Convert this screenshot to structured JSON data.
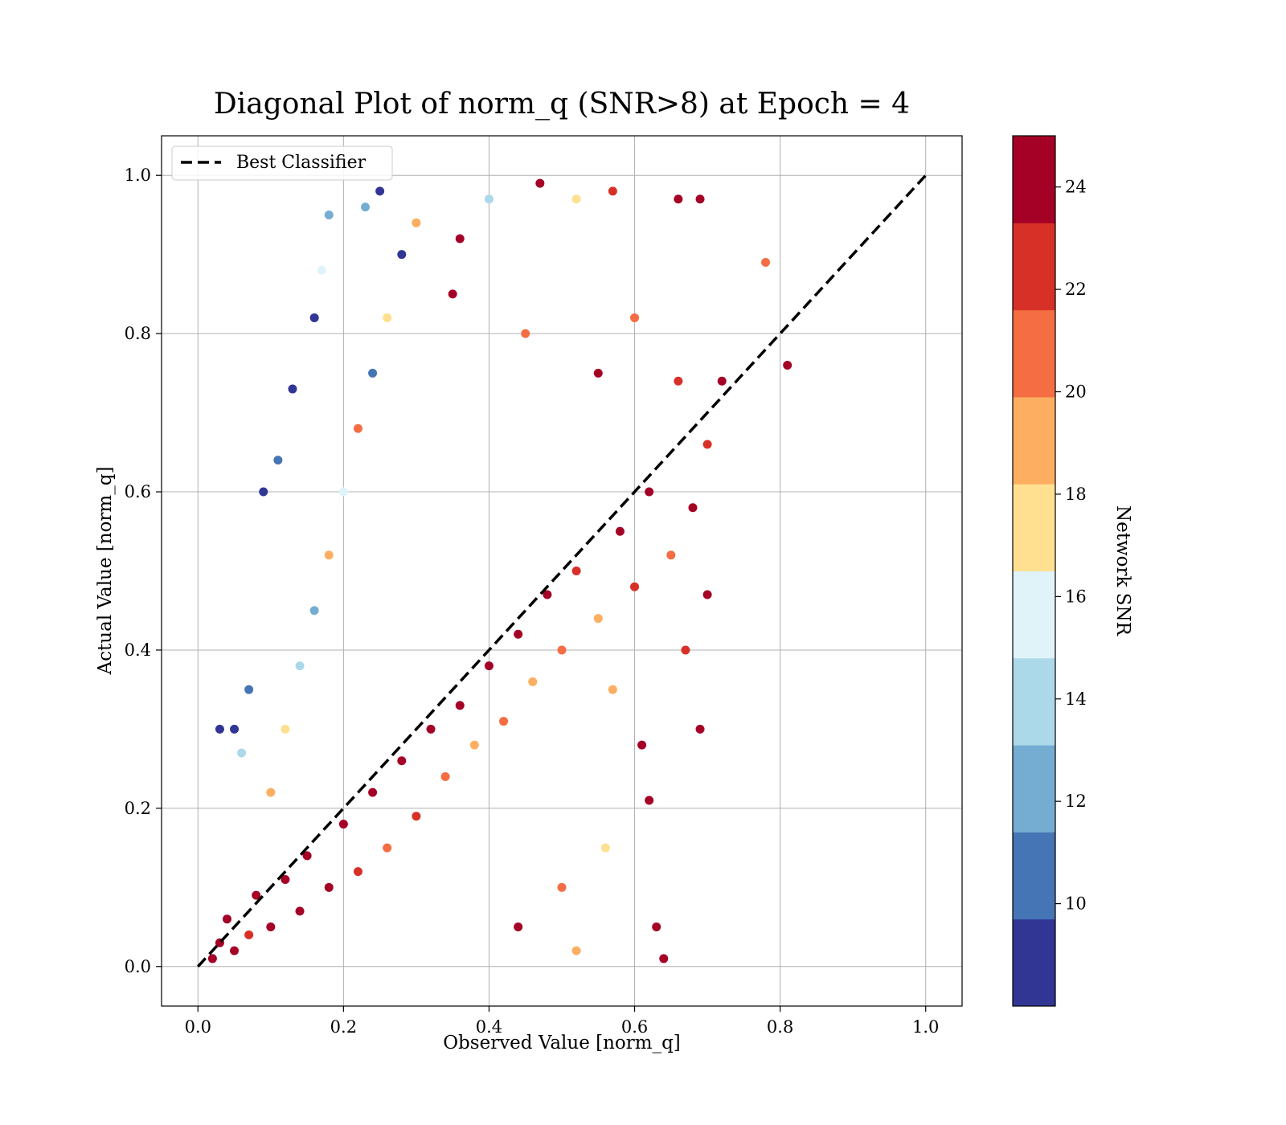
{
  "chart_data": {
    "type": "scatter",
    "title": "Diagonal Plot of norm_q (SNR>8) at Epoch = 4",
    "xlabel": "Observed Value [norm_q]",
    "ylabel": "Actual Value [norm_q]",
    "xlim": [
      -0.05,
      1.05
    ],
    "ylim": [
      -0.05,
      1.05
    ],
    "xticks": [
      "0.0",
      "0.2",
      "0.4",
      "0.6",
      "0.8",
      "1.0"
    ],
    "yticks": [
      "0.0",
      "0.2",
      "0.4",
      "0.6",
      "0.8",
      "1.0"
    ],
    "grid": true,
    "legend": {
      "placement": "top-left",
      "entries": [
        "Best Classifier"
      ]
    },
    "reference_line": {
      "name": "Best Classifier",
      "x": [
        0.0,
        1.0
      ],
      "y": [
        0.0,
        1.0
      ],
      "style": "dashed",
      "color": "#000000"
    },
    "colorbar": {
      "label": "Network SNR",
      "range": [
        8,
        25
      ],
      "ticks": [
        "10",
        "12",
        "14",
        "16",
        "18",
        "20",
        "22",
        "24"
      ],
      "colors": [
        "#313695",
        "#4575b4",
        "#74add1",
        "#abd9e9",
        "#e0f3f8",
        "#fee090",
        "#fdae61",
        "#f46d43",
        "#d73027",
        "#a50026"
      ]
    },
    "series": [
      {
        "color_by": "Network SNR",
        "points": [
          [
            0.02,
            0.01,
            24.5
          ],
          [
            0.03,
            0.03,
            24.1
          ],
          [
            0.05,
            0.02,
            23.8
          ],
          [
            0.04,
            0.06,
            24.7
          ],
          [
            0.07,
            0.04,
            22.9
          ],
          [
            0.08,
            0.09,
            24.3
          ],
          [
            0.1,
            0.05,
            24.8
          ],
          [
            0.12,
            0.11,
            24.0
          ],
          [
            0.14,
            0.07,
            23.5
          ],
          [
            0.15,
            0.14,
            24.6
          ],
          [
            0.18,
            0.1,
            24.9
          ],
          [
            0.2,
            0.18,
            24.2
          ],
          [
            0.22,
            0.12,
            23.1
          ],
          [
            0.24,
            0.22,
            24.4
          ],
          [
            0.26,
            0.15,
            21.5
          ],
          [
            0.28,
            0.26,
            24.7
          ],
          [
            0.3,
            0.19,
            22.4
          ],
          [
            0.32,
            0.3,
            24.1
          ],
          [
            0.34,
            0.24,
            20.3
          ],
          [
            0.36,
            0.33,
            23.9
          ],
          [
            0.38,
            0.28,
            19.6
          ],
          [
            0.4,
            0.38,
            24.5
          ],
          [
            0.42,
            0.31,
            21.0
          ],
          [
            0.44,
            0.42,
            23.3
          ],
          [
            0.46,
            0.36,
            19.1
          ],
          [
            0.48,
            0.47,
            24.0
          ],
          [
            0.5,
            0.4,
            20.8
          ],
          [
            0.52,
            0.5,
            22.6
          ],
          [
            0.55,
            0.44,
            18.7
          ],
          [
            0.58,
            0.55,
            24.2
          ],
          [
            0.6,
            0.48,
            21.7
          ],
          [
            0.62,
            0.6,
            23.8
          ],
          [
            0.65,
            0.52,
            20.1
          ],
          [
            0.68,
            0.58,
            24.6
          ],
          [
            0.7,
            0.66,
            22.3
          ],
          [
            0.72,
            0.74,
            24.4
          ],
          [
            0.78,
            0.89,
            20.4
          ],
          [
            0.81,
            0.76,
            24.0
          ],
          [
            0.63,
            0.05,
            24.1
          ],
          [
            0.64,
            0.01,
            23.6
          ],
          [
            0.1,
            0.22,
            19.5
          ],
          [
            0.12,
            0.3,
            17.2
          ],
          [
            0.14,
            0.38,
            14.6
          ],
          [
            0.16,
            0.45,
            12.3
          ],
          [
            0.18,
            0.52,
            18.4
          ],
          [
            0.2,
            0.6,
            15.1
          ],
          [
            0.22,
            0.68,
            20.6
          ],
          [
            0.24,
            0.75,
            10.4
          ],
          [
            0.26,
            0.82,
            16.8
          ],
          [
            0.28,
            0.9,
            9.2
          ],
          [
            0.25,
            0.98,
            8.6
          ],
          [
            0.23,
            0.96,
            11.5
          ],
          [
            0.3,
            0.94,
            19.2
          ],
          [
            0.36,
            0.92,
            24.6
          ],
          [
            0.4,
            0.97,
            13.3
          ],
          [
            0.47,
            0.99,
            24.5
          ],
          [
            0.52,
            0.97,
            18.0
          ],
          [
            0.57,
            0.98,
            22.7
          ],
          [
            0.66,
            0.97,
            24.3
          ],
          [
            0.69,
            0.97,
            24.7
          ],
          [
            0.09,
            0.6,
            9.0
          ],
          [
            0.05,
            0.3,
            8.3
          ],
          [
            0.03,
            0.3,
            8.8
          ],
          [
            0.16,
            0.82,
            9.5
          ],
          [
            0.18,
            0.95,
            12.4
          ],
          [
            0.11,
            0.64,
            10.1
          ],
          [
            0.07,
            0.35,
            11.2
          ],
          [
            0.06,
            0.27,
            13.6
          ],
          [
            0.13,
            0.73,
            8.9
          ],
          [
            0.17,
            0.88,
            15.4
          ],
          [
            0.35,
            0.85,
            23.4
          ],
          [
            0.45,
            0.8,
            21.1
          ],
          [
            0.55,
            0.75,
            24.2
          ],
          [
            0.6,
            0.82,
            20.9
          ],
          [
            0.66,
            0.74,
            23.0
          ],
          [
            0.56,
            0.15,
            17.9
          ],
          [
            0.5,
            0.1,
            20.4
          ],
          [
            0.44,
            0.05,
            23.6
          ],
          [
            0.52,
            0.02,
            19.8
          ],
          [
            0.57,
            0.35,
            18.2
          ],
          [
            0.61,
            0.28,
            24.0
          ],
          [
            0.67,
            0.4,
            22.5
          ],
          [
            0.7,
            0.47,
            24.4
          ],
          [
            0.69,
            0.3,
            24.0
          ],
          [
            0.62,
            0.21,
            24.6
          ]
        ]
      }
    ]
  }
}
